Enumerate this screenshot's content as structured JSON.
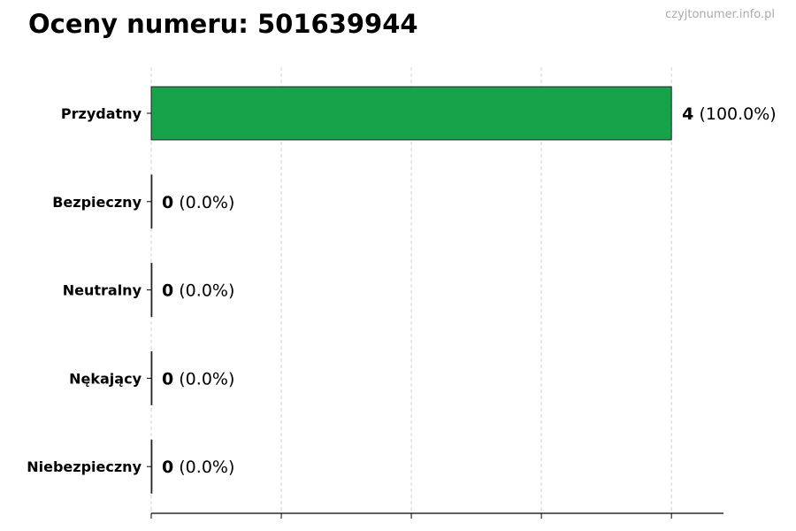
{
  "watermark": "czyjtonumer.info.pl",
  "chart_data": {
    "type": "bar",
    "orientation": "horizontal",
    "title": "Oceny numeru: 501639944",
    "categories": [
      "Przydatny",
      "Bezpieczny",
      "Neutralny",
      "Nękający",
      "Niebezpieczny"
    ],
    "values": [
      4,
      0,
      0,
      0,
      0
    ],
    "data_labels": [
      {
        "count": "4",
        "percent": "(100.0%)"
      },
      {
        "count": "0",
        "percent": "(0.0%)"
      },
      {
        "count": "0",
        "percent": "(0.0%)"
      },
      {
        "count": "0",
        "percent": "(0.0%)"
      },
      {
        "count": "0",
        "percent": "(0.0%)"
      }
    ],
    "xlim": [
      0,
      4.4
    ],
    "xticks": [
      0,
      1,
      2,
      3,
      4
    ],
    "xtick_labels_visible": false,
    "grid": "vertical dashed",
    "bar_color": "#16a34a",
    "xlabel": "",
    "ylabel": ""
  }
}
